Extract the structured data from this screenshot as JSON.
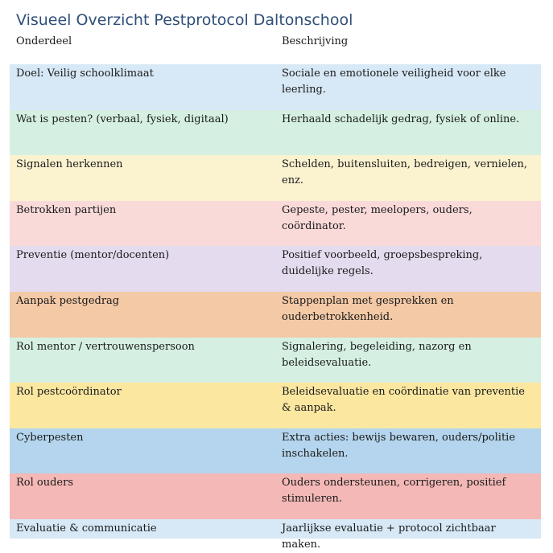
{
  "title": "Visueel Overzicht Pestprotocol Daltonschool",
  "headers": {
    "left": "Onderdeel",
    "right": "Beschrijving"
  },
  "rows": [
    {
      "part": "Doel: Veilig schoolklimaat",
      "description": "Sociale en emotionele veiligheid voor elke leerling.",
      "color": "#d7e8f6"
    },
    {
      "part": "Wat is pesten? (verbaal, fysiek, digitaal)",
      "description": "Herhaald schadelijk gedrag, fysiek of online.",
      "color": "#d5f0e2"
    },
    {
      "part": "Signalen herkennen",
      "description": "Schelden, buitensluiten, bedreigen, vernielen, enz.",
      "color": "#fbf2d0"
    },
    {
      "part": "Betrokken partijen",
      "description": "Gepeste, pester, meelopers, ouders, coördinator.",
      "color": "#f9dad9"
    },
    {
      "part": "Preventie (mentor/docenten)",
      "description": "Positief voorbeeld, groepsbespreking, duidelijke regels.",
      "color": "#e4dbef"
    },
    {
      "part": "Aanpak pestgedrag",
      "description": "Stappenplan met gesprekken en ouderbetrokkenheid.",
      "color": "#f3c9a6"
    },
    {
      "part": "Rol mentor / vertrouwenspersoon",
      "description": "Signalering, begeleiding, nazorg en beleidsevaluatie.",
      "color": "#d5f0e2"
    },
    {
      "part": "Rol pestcoördinator",
      "description": "Beleidsevaluatie en coördinatie van preventie & aanpak.",
      "color": "#fbe7a0"
    },
    {
      "part": "Cyberpesten",
      "description": "Extra acties: bewijs bewaren, ouders/politie inschakelen.",
      "color": "#b4d5ed"
    },
    {
      "part": "Rol ouders",
      "description": "Ouders ondersteunen, corrigeren, positief stimuleren.",
      "color": "#f4b8b6"
    },
    {
      "part": "Evaluatie & communicatie",
      "description": "Jaarlijkse evaluatie + protocol zichtbaar maken.",
      "color": "#d7e8f6"
    }
  ]
}
